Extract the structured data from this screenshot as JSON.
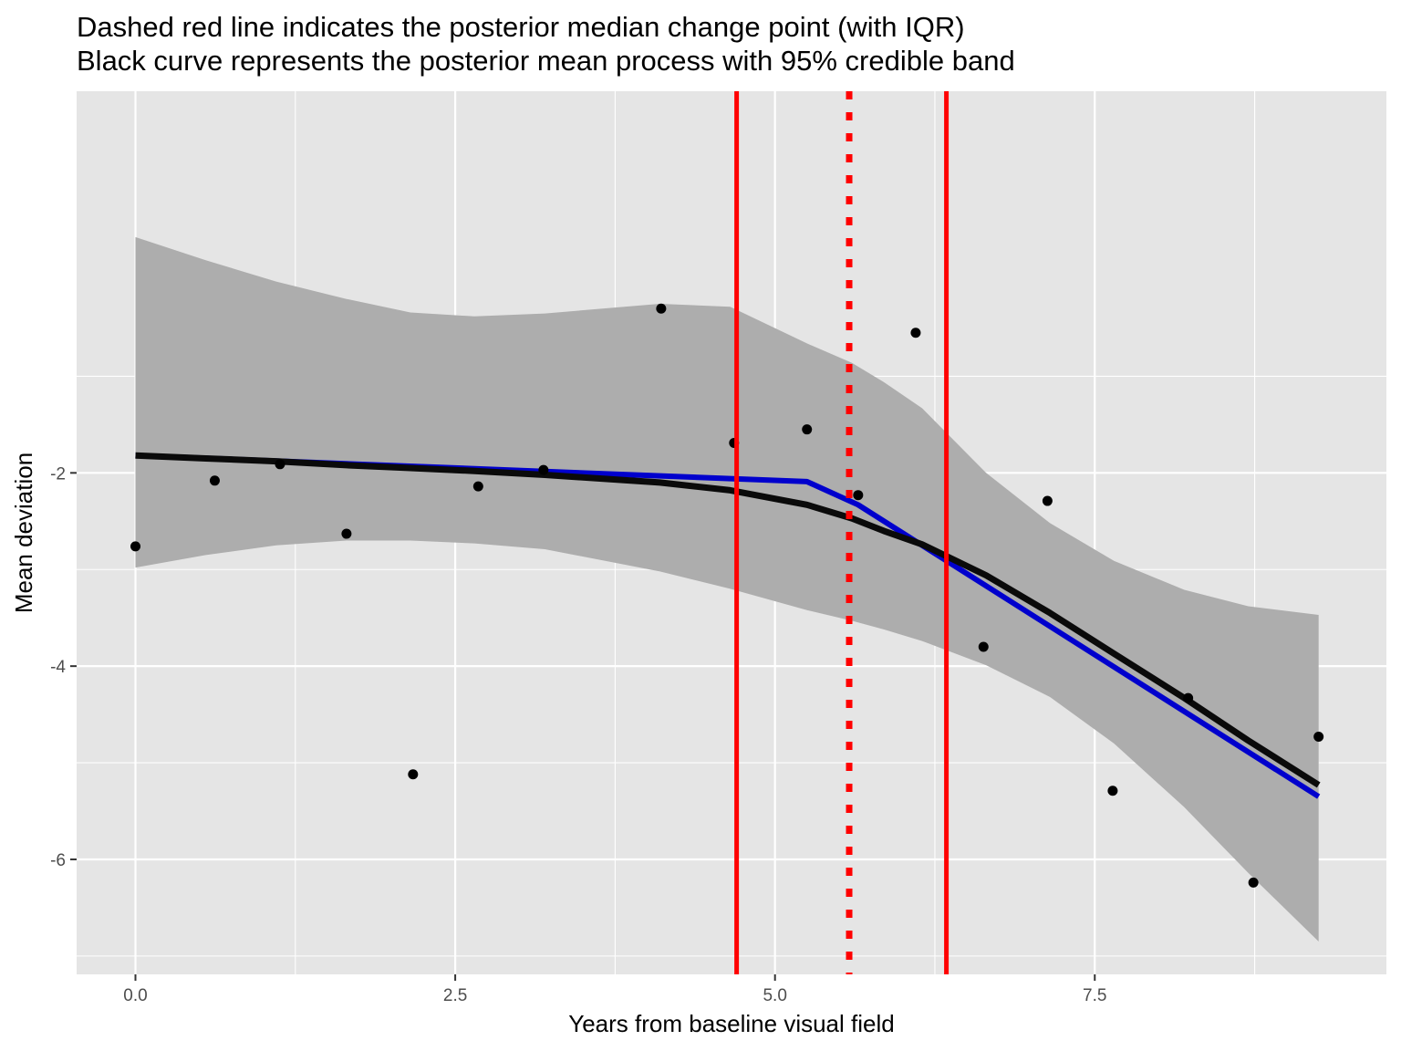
{
  "chart_data": {
    "type": "line",
    "title_lines": [
      "Dashed red line indicates the posterior median change point (with IQR)",
      "Black curve represents the posterior mean process with 95% credible band"
    ],
    "xlabel": "Years from baseline visual field",
    "ylabel": "Mean deviation",
    "xlim": [
      -0.46,
      9.78
    ],
    "ylim": [
      -7.19,
      1.95
    ],
    "x_ticks": [
      {
        "value": 0.0,
        "label": "0.0"
      },
      {
        "value": 2.5,
        "label": "2.5"
      },
      {
        "value": 5.0,
        "label": "5.0"
      },
      {
        "value": 7.5,
        "label": "7.5"
      }
    ],
    "x_minor_ticks": [
      1.25,
      3.75,
      6.25,
      8.75
    ],
    "y_ticks": [
      {
        "value": -2,
        "label": "-2"
      },
      {
        "value": -4,
        "label": "-4"
      },
      {
        "value": -6,
        "label": "-6"
      }
    ],
    "y_minor_ticks": [
      -1,
      -3,
      -5,
      -7
    ],
    "colors": {
      "panel": "#e5e5e5",
      "grid": "#ffffff",
      "band": "#adadad",
      "mean_line": "#0a0a0a",
      "fit_line": "#0000cd",
      "change_point": "#ff0000",
      "points": "#000000"
    },
    "observations": {
      "x": [
        0.0,
        0.62,
        1.13,
        1.65,
        2.17,
        2.68,
        3.19,
        4.11,
        4.68,
        5.25,
        5.65,
        6.1,
        6.63,
        7.13,
        7.64,
        8.23,
        8.74,
        9.25
      ],
      "y": [
        -2.76,
        -2.08,
        -1.91,
        -2.63,
        -5.12,
        -2.14,
        -1.97,
        -0.3,
        -1.69,
        -1.55,
        -2.23,
        -0.55,
        -3.8,
        -2.29,
        -5.29,
        -4.33,
        -6.24,
        -4.73
      ]
    },
    "credible_band": {
      "x": [
        0.0,
        0.55,
        1.1,
        1.65,
        2.15,
        2.65,
        3.2,
        4.1,
        4.65,
        5.25,
        5.6,
        5.85,
        6.15,
        6.65,
        7.15,
        7.65,
        8.2,
        8.7,
        9.25
      ],
      "upper": [
        0.44,
        0.2,
        -0.02,
        -0.2,
        -0.34,
        -0.38,
        -0.35,
        -0.25,
        -0.28,
        -0.66,
        -0.86,
        -1.06,
        -1.33,
        -2.0,
        -2.52,
        -2.91,
        -3.21,
        -3.38,
        -3.47
      ],
      "lower": [
        -2.98,
        -2.85,
        -2.75,
        -2.7,
        -2.7,
        -2.73,
        -2.79,
        -3.02,
        -3.2,
        -3.42,
        -3.53,
        -3.62,
        -3.74,
        -3.99,
        -4.32,
        -4.8,
        -5.46,
        -6.14,
        -6.85
      ]
    },
    "series": [
      {
        "name": "posterior mean process",
        "color": "#0a0a0a",
        "x": [
          0.0,
          0.55,
          1.1,
          1.65,
          2.15,
          2.65,
          3.2,
          4.1,
          4.65,
          5.25,
          5.6,
          5.85,
          6.15,
          6.65,
          7.15,
          7.65,
          8.2,
          8.7,
          9.25
        ],
        "y": [
          -1.82,
          -1.85,
          -1.88,
          -1.92,
          -1.95,
          -1.98,
          -2.02,
          -2.1,
          -2.18,
          -2.33,
          -2.47,
          -2.6,
          -2.74,
          -3.06,
          -3.45,
          -3.87,
          -4.33,
          -4.77,
          -5.23
        ]
      },
      {
        "name": "piecewise linear fit",
        "color": "#0000cd",
        "x": [
          0.0,
          5.25,
          5.65,
          9.25
        ],
        "y": [
          -1.82,
          -2.09,
          -2.33,
          -5.35
        ]
      }
    ],
    "change_point": {
      "median": 5.58,
      "iqr": [
        4.7,
        6.34
      ],
      "median_style": "dotted",
      "iqr_style": "solid"
    }
  }
}
